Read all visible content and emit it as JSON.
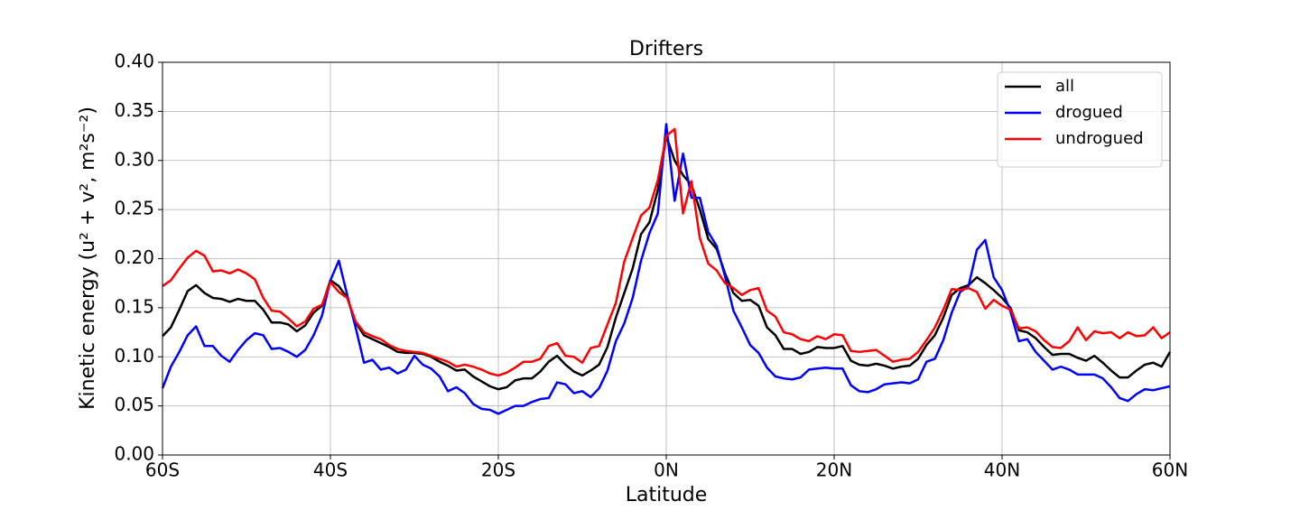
{
  "chart_data": {
    "type": "line",
    "title": "Drifters",
    "xlabel": "Latitude",
    "ylabel": "Kinetic energy (u² + v², m²s⁻²)",
    "x": [
      -60,
      -59,
      -58,
      -57,
      -56,
      -55,
      -54,
      -53,
      -52,
      -51,
      -50,
      -49,
      -48,
      -47,
      -46,
      -45,
      -44,
      -43,
      -42,
      -41,
      -40,
      -39,
      -38,
      -37,
      -36,
      -35,
      -34,
      -33,
      -32,
      -31,
      -30,
      -29,
      -28,
      -27,
      -26,
      -25,
      -24,
      -23,
      -22,
      -21,
      -20,
      -19,
      -18,
      -17,
      -16,
      -15,
      -14,
      -13,
      -12,
      -11,
      -10,
      -9,
      -8,
      -7,
      -6,
      -5,
      -4,
      -3,
      -2,
      -1,
      0,
      1,
      2,
      3,
      4,
      5,
      6,
      7,
      8,
      9,
      10,
      11,
      12,
      13,
      14,
      15,
      16,
      17,
      18,
      19,
      20,
      21,
      22,
      23,
      24,
      25,
      26,
      27,
      28,
      29,
      30,
      31,
      32,
      33,
      34,
      35,
      36,
      37,
      38,
      39,
      40,
      41,
      42,
      43,
      44,
      45,
      46,
      47,
      48,
      49,
      50,
      51,
      52,
      53,
      54,
      55,
      56,
      57,
      58,
      59,
      60
    ],
    "series": [
      {
        "name": "all",
        "color": "#000000",
        "values": [
          0.121,
          0.13,
          0.148,
          0.167,
          0.173,
          0.165,
          0.16,
          0.159,
          0.156,
          0.159,
          0.157,
          0.157,
          0.148,
          0.135,
          0.135,
          0.133,
          0.126,
          0.132,
          0.145,
          0.152,
          0.178,
          0.172,
          0.16,
          0.135,
          0.122,
          0.118,
          0.114,
          0.11,
          0.105,
          0.104,
          0.104,
          0.103,
          0.1,
          0.095,
          0.091,
          0.086,
          0.087,
          0.08,
          0.075,
          0.07,
          0.067,
          0.069,
          0.076,
          0.078,
          0.078,
          0.085,
          0.095,
          0.101,
          0.092,
          0.085,
          0.081,
          0.086,
          0.092,
          0.11,
          0.14,
          0.165,
          0.19,
          0.225,
          0.237,
          0.27,
          0.325,
          0.3,
          0.285,
          0.275,
          0.25,
          0.22,
          0.21,
          0.185,
          0.165,
          0.157,
          0.158,
          0.152,
          0.13,
          0.122,
          0.108,
          0.108,
          0.103,
          0.105,
          0.11,
          0.109,
          0.109,
          0.111,
          0.096,
          0.092,
          0.091,
          0.093,
          0.091,
          0.088,
          0.09,
          0.091,
          0.098,
          0.112,
          0.122,
          0.14,
          0.163,
          0.17,
          0.173,
          0.181,
          0.175,
          0.168,
          0.16,
          0.15,
          0.127,
          0.125,
          0.119,
          0.11,
          0.102,
          0.103,
          0.103,
          0.099,
          0.096,
          0.101,
          0.094,
          0.086,
          0.079,
          0.079,
          0.086,
          0.092,
          0.094,
          0.09,
          0.105
        ]
      },
      {
        "name": "drogued",
        "color": "#0000ff",
        "values": [
          0.068,
          0.09,
          0.105,
          0.122,
          0.131,
          0.111,
          0.111,
          0.101,
          0.095,
          0.107,
          0.117,
          0.124,
          0.122,
          0.108,
          0.109,
          0.105,
          0.1,
          0.107,
          0.122,
          0.142,
          0.178,
          0.198,
          0.163,
          0.13,
          0.094,
          0.097,
          0.087,
          0.089,
          0.083,
          0.087,
          0.101,
          0.092,
          0.088,
          0.08,
          0.065,
          0.069,
          0.063,
          0.052,
          0.047,
          0.046,
          0.042,
          0.046,
          0.05,
          0.05,
          0.054,
          0.057,
          0.058,
          0.074,
          0.072,
          0.063,
          0.065,
          0.059,
          0.068,
          0.086,
          0.116,
          0.134,
          0.16,
          0.198,
          0.226,
          0.246,
          0.337,
          0.259,
          0.307,
          0.262,
          0.262,
          0.227,
          0.213,
          0.182,
          0.147,
          0.13,
          0.112,
          0.104,
          0.089,
          0.08,
          0.078,
          0.077,
          0.079,
          0.087,
          0.088,
          0.089,
          0.088,
          0.088,
          0.071,
          0.065,
          0.064,
          0.067,
          0.072,
          0.073,
          0.074,
          0.073,
          0.077,
          0.095,
          0.098,
          0.117,
          0.145,
          0.166,
          0.172,
          0.209,
          0.219,
          0.181,
          0.168,
          0.146,
          0.116,
          0.118,
          0.105,
          0.096,
          0.087,
          0.09,
          0.087,
          0.082,
          0.082,
          0.082,
          0.078,
          0.069,
          0.058,
          0.055,
          0.062,
          0.067,
          0.066,
          0.068,
          0.07
        ]
      },
      {
        "name": "undrogued",
        "color": "#ff0000",
        "values": [
          0.172,
          0.178,
          0.19,
          0.201,
          0.208,
          0.203,
          0.187,
          0.188,
          0.185,
          0.189,
          0.185,
          0.179,
          0.16,
          0.147,
          0.146,
          0.139,
          0.131,
          0.136,
          0.149,
          0.153,
          0.176,
          0.166,
          0.16,
          0.136,
          0.125,
          0.121,
          0.118,
          0.112,
          0.108,
          0.106,
          0.105,
          0.104,
          0.101,
          0.098,
          0.095,
          0.09,
          0.092,
          0.09,
          0.087,
          0.083,
          0.081,
          0.084,
          0.089,
          0.095,
          0.095,
          0.098,
          0.111,
          0.114,
          0.101,
          0.1,
          0.094,
          0.109,
          0.111,
          0.133,
          0.155,
          0.197,
          0.221,
          0.244,
          0.252,
          0.28,
          0.325,
          0.332,
          0.246,
          0.279,
          0.221,
          0.195,
          0.188,
          0.175,
          0.17,
          0.163,
          0.168,
          0.17,
          0.147,
          0.141,
          0.125,
          0.123,
          0.118,
          0.116,
          0.121,
          0.118,
          0.123,
          0.122,
          0.106,
          0.105,
          0.106,
          0.107,
          0.101,
          0.095,
          0.097,
          0.098,
          0.105,
          0.117,
          0.13,
          0.148,
          0.169,
          0.168,
          0.17,
          0.166,
          0.149,
          0.158,
          0.152,
          0.148,
          0.129,
          0.13,
          0.126,
          0.117,
          0.11,
          0.109,
          0.116,
          0.13,
          0.117,
          0.126,
          0.124,
          0.125,
          0.119,
          0.125,
          0.121,
          0.122,
          0.13,
          0.119,
          0.125
        ]
      }
    ],
    "xlim": [
      -60,
      60
    ],
    "xticks": [
      {
        "value": -60,
        "label": "60S"
      },
      {
        "value": -40,
        "label": "40S"
      },
      {
        "value": -20,
        "label": "20S"
      },
      {
        "value": 0,
        "label": "0N"
      },
      {
        "value": 20,
        "label": "20N"
      },
      {
        "value": 40,
        "label": "40N"
      },
      {
        "value": 60,
        "label": "60N"
      }
    ],
    "ylim": [
      0,
      0.4
    ],
    "yticks": [
      {
        "value": 0,
        "label": "0.00"
      },
      0.05,
      {
        "value": 0.1,
        "label": "0.10"
      },
      0.15,
      {
        "value": 0.2,
        "label": "0.20"
      },
      0.25,
      {
        "value": 0.3,
        "label": "0.30"
      },
      0.35,
      {
        "value": 0.4,
        "label": "0.40"
      }
    ],
    "grid": true,
    "legend": "upper right"
  }
}
